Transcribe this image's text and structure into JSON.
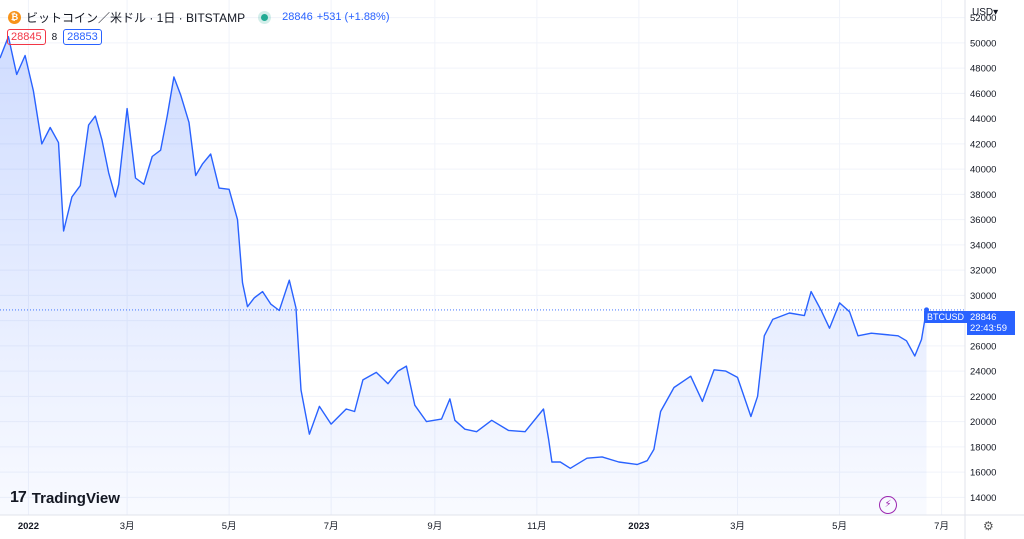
{
  "header": {
    "coin_icon": "bitcoin-icon",
    "symbol_title": "ビットコイン／米ドル · 1日 · BITSTAMP",
    "current_price": "28846",
    "change": "+531 (+1.88%)"
  },
  "quote": {
    "bid": "28845",
    "spread": "8",
    "ask": "28853"
  },
  "price_scale": {
    "currency": "USD"
  },
  "price_tag": {
    "symbol": "BTCUSD",
    "price": "28846",
    "countdown": "22:43:59"
  },
  "branding": {
    "logo_text": "TradingView"
  },
  "icons": {
    "bolt": "lightning-icon",
    "settings": "gear-icon"
  },
  "colors": {
    "line": "#2962ff",
    "bid": "#f23645",
    "ask": "#2962ff",
    "live_dot": "#22ab94"
  },
  "chart_data": {
    "type": "area",
    "title": "ビットコイン／米ドル · 1日 · BITSTAMP",
    "ylim": [
      12600,
      53400
    ],
    "y_ticks": [
      14000,
      16000,
      18000,
      20000,
      22000,
      24000,
      26000,
      28000,
      30000,
      32000,
      34000,
      36000,
      38000,
      40000,
      42000,
      44000,
      46000,
      48000,
      50000,
      52000
    ],
    "x_ticks": [
      "2022",
      "3月",
      "5月",
      "7月",
      "9月",
      "11月",
      "2023",
      "3月",
      "5月",
      "7月"
    ],
    "x_tick_dates": [
      "2022-01-01",
      "2022-03-01",
      "2022-05-01",
      "2022-07-01",
      "2022-09-01",
      "2022-11-01",
      "2023-01-01",
      "2023-03-01",
      "2023-05-01",
      "2023-07-01"
    ],
    "grid": true,
    "series": [
      {
        "x": [
          "2021-12-15",
          "2021-12-20",
          "2021-12-25",
          "2021-12-30",
          "2022-01-04",
          "2022-01-09",
          "2022-01-14",
          "2022-01-19",
          "2022-01-22",
          "2022-01-27",
          "2022-02-01",
          "2022-02-06",
          "2022-02-10",
          "2022-02-14",
          "2022-02-18",
          "2022-02-22",
          "2022-02-24",
          "2022-03-01",
          "2022-03-06",
          "2022-03-11",
          "2022-03-16",
          "2022-03-21",
          "2022-03-25",
          "2022-03-29",
          "2022-04-02",
          "2022-04-07",
          "2022-04-11",
          "2022-04-15",
          "2022-04-20",
          "2022-04-25",
          "2022-05-01",
          "2022-05-06",
          "2022-05-09",
          "2022-05-12",
          "2022-05-16",
          "2022-05-21",
          "2022-05-26",
          "2022-05-31",
          "2022-06-06",
          "2022-06-10",
          "2022-06-13",
          "2022-06-18",
          "2022-06-24",
          "2022-07-01",
          "2022-07-10",
          "2022-07-15",
          "2022-07-20",
          "2022-07-28",
          "2022-08-04",
          "2022-08-10",
          "2022-08-15",
          "2022-08-20",
          "2022-08-27",
          "2022-09-05",
          "2022-09-10",
          "2022-09-13",
          "2022-09-19",
          "2022-09-26",
          "2022-10-05",
          "2022-10-15",
          "2022-10-25",
          "2022-11-05",
          "2022-11-08",
          "2022-11-10",
          "2022-11-15",
          "2022-11-21",
          "2022-12-01",
          "2022-12-10",
          "2022-12-20",
          "2022-12-31",
          "2023-01-06",
          "2023-01-10",
          "2023-01-14",
          "2023-01-22",
          "2023-02-01",
          "2023-02-08",
          "2023-02-15",
          "2023-02-22",
          "2023-03-01",
          "2023-03-09",
          "2023-03-13",
          "2023-03-17",
          "2023-03-22",
          "2023-04-01",
          "2023-04-10",
          "2023-04-14",
          "2023-04-20",
          "2023-04-25",
          "2023-05-01",
          "2023-05-07",
          "2023-05-12",
          "2023-05-20",
          "2023-05-28",
          "2023-06-05",
          "2023-06-10",
          "2023-06-15",
          "2023-06-19",
          "2023-06-22"
        ],
        "values": [
          48800,
          50500,
          47500,
          49000,
          46200,
          42000,
          43300,
          42100,
          35100,
          37800,
          38700,
          43500,
          44200,
          42300,
          39700,
          37800,
          38800,
          44800,
          39300,
          38800,
          41000,
          41500,
          44200,
          47300,
          45900,
          43700,
          39500,
          40400,
          41200,
          38500,
          38400,
          36000,
          31000,
          29100,
          29800,
          30300,
          29300,
          28800,
          31200,
          29000,
          22500,
          19000,
          21200,
          19800,
          21000,
          20800,
          23300,
          23900,
          23000,
          24000,
          24400,
          21300,
          20000,
          20200,
          21800,
          20100,
          19400,
          19200,
          20100,
          19300,
          19200,
          21000,
          18600,
          16800,
          16800,
          16300,
          17100,
          17200,
          16800,
          16600,
          16900,
          17800,
          20800,
          22700,
          23600,
          21600,
          24100,
          24000,
          23500,
          20400,
          22000,
          26800,
          28100,
          28600,
          28400,
          30300,
          28800,
          27400,
          29400,
          28700,
          26800,
          27000,
          26900,
          26800,
          26400,
          25200,
          26500,
          28846
        ]
      }
    ],
    "last_price": 28846
  }
}
